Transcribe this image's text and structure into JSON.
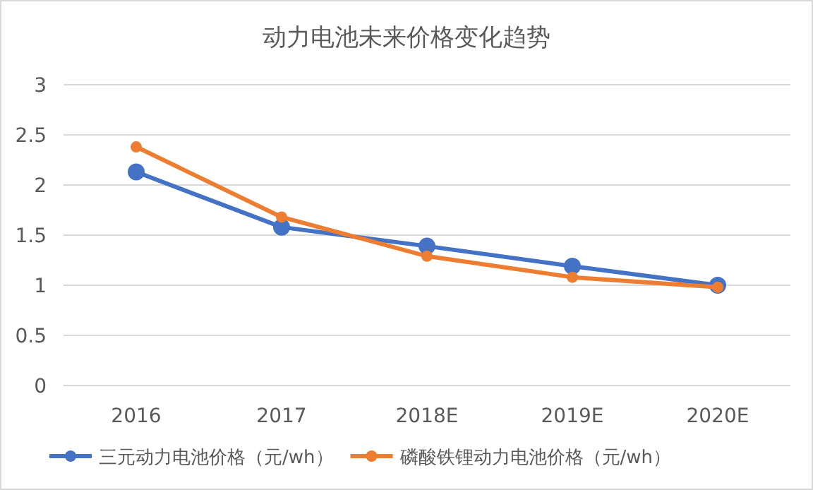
{
  "chart_data": {
    "type": "line",
    "title": "动力电池未来价格变化趋势",
    "categories": [
      "2016",
      "2017",
      "2018E",
      "2019E",
      "2020E"
    ],
    "series": [
      {
        "name": "三元动力电池价格（元/wh）",
        "color": "#4472c4",
        "values": [
          2.13,
          1.58,
          1.39,
          1.19,
          1.0
        ]
      },
      {
        "name": "磷酸铁锂动力电池价格（元/wh）",
        "color": "#ed7d31",
        "values": [
          2.38,
          1.68,
          1.29,
          1.08,
          0.98
        ]
      }
    ],
    "ylim": [
      0,
      3
    ],
    "yticks": [
      0,
      0.5,
      1,
      1.5,
      2,
      2.5,
      3
    ],
    "grid": "y",
    "legend": "bottom",
    "marker": "circle",
    "line_style": "solid"
  }
}
